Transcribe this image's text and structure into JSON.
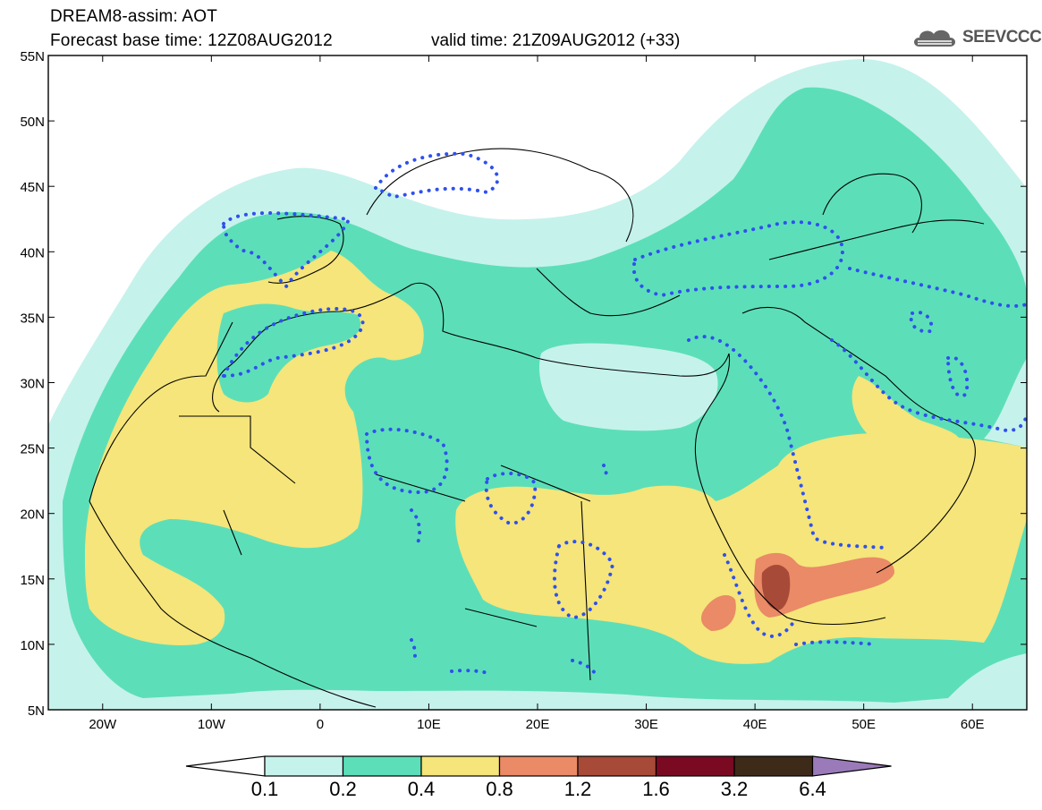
{
  "header": {
    "title": "DREAM8-assim: AOT",
    "base_time": "Forecast base time: 12Z08AUG2012",
    "valid_time": "valid time: 21Z09AUG2012 (+33)",
    "logo_text": "SEEVCCC"
  },
  "map": {
    "lat_labels": [
      "55N",
      "50N",
      "45N",
      "40N",
      "35N",
      "30N",
      "25N",
      "20N",
      "15N",
      "10N",
      "5N"
    ],
    "lon_labels": [
      "20W",
      "10W",
      "0",
      "10E",
      "20E",
      "30E",
      "40E",
      "50E",
      "60E"
    ],
    "lon_range": [
      -25,
      65
    ],
    "lat_range": [
      5,
      55
    ]
  },
  "legend": {
    "labels": [
      "0.1",
      "0.2",
      "0.4",
      "0.8",
      "1.2",
      "1.6",
      "3.2",
      "6.4"
    ],
    "colors": [
      "#c6f2ec",
      "#5cdfb8",
      "#f5e57a",
      "#ea8a66",
      "#a84a38",
      "#7a0a22",
      "#3d2a18"
    ],
    "over_color": "#9a7ab8",
    "under_color": "#ffffff"
  },
  "colors": {
    "contour_dots": "#2f50ee",
    "land_outline": "#000000"
  }
}
